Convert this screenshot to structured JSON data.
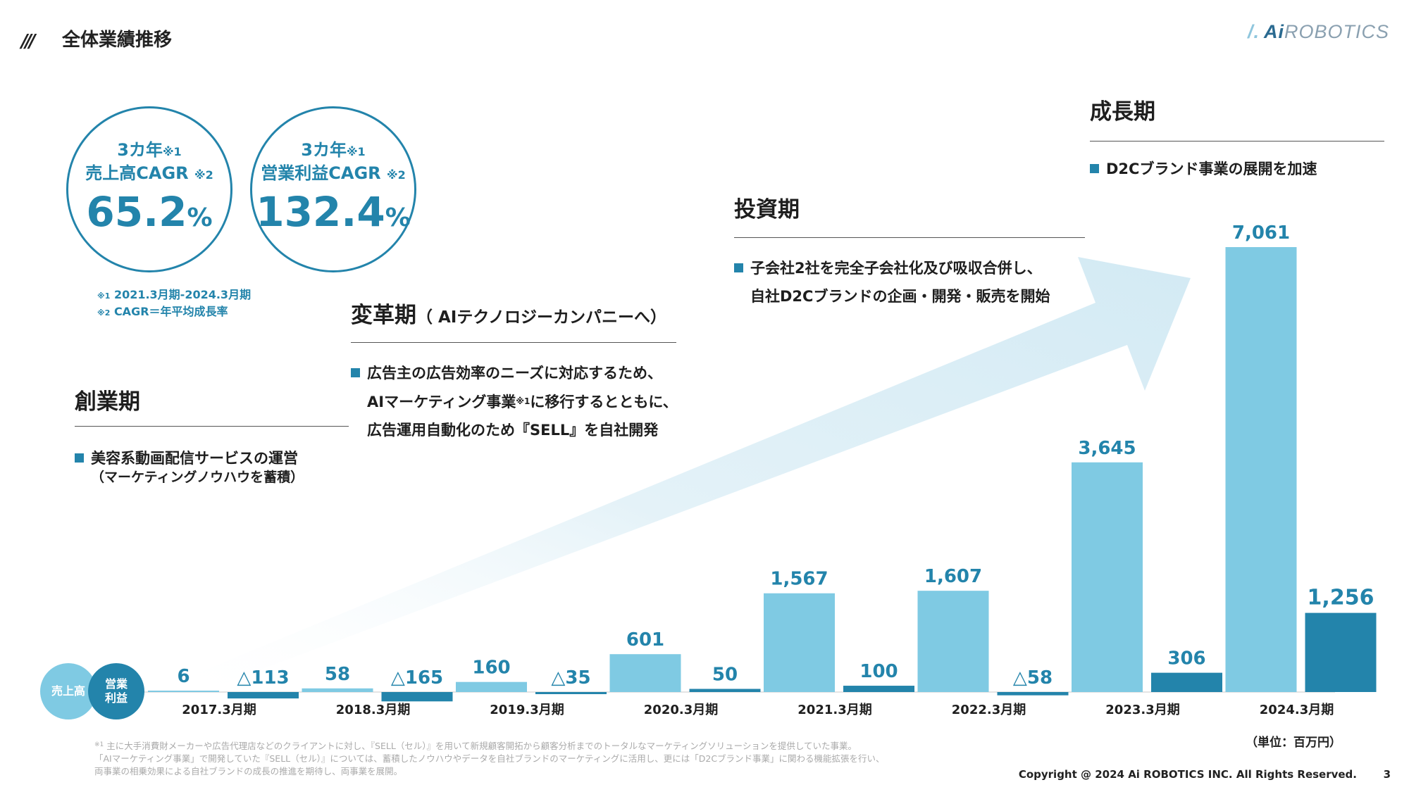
{
  "header": {
    "mark": "///",
    "title": "全体業績推移"
  },
  "logo": {
    "slash": "/.",
    "ai": "Ai",
    "rest": "ROBOTICS"
  },
  "cagr": [
    {
      "line1": "3カ年",
      "note1": "※1",
      "line2": "売上高CAGR",
      "note2": "※2",
      "value": "65.2",
      "unit": "%"
    },
    {
      "line1": "3カ年",
      "note1": "※1",
      "line2": "営業利益CAGR",
      "note2": "※2",
      "value": "132.4",
      "unit": "%"
    }
  ],
  "cagr_notes": [
    {
      "mark": "※1",
      "text": "2021.3月期-2024.3月期"
    },
    {
      "mark": "※2",
      "text": "CAGR＝年平均成長率"
    }
  ],
  "phases": [
    {
      "title": "創業期",
      "lines": [
        "美容系動画配信サービスの運営",
        "（マーケティングノウハウを蓄積）"
      ]
    },
    {
      "title": "変革期",
      "title_sub": "（ AIテクノロジーカンパニーへ）",
      "lines": [
        "広告主の広告効率のニーズに対応するため、",
        "AIマーケティング事業",
        "※1",
        "に移行するとともに、",
        "広告運用自動化のため『SELL』を自社開発"
      ]
    },
    {
      "title": "投資期",
      "lines": [
        "子会社2社を完全子会社化及び吸収合併し、",
        "自社D2Cブランドの企画・開発・販売を開始"
      ]
    },
    {
      "title": "成長期",
      "lines": [
        "D2Cブランド事業の展開を加速"
      ]
    }
  ],
  "legend": {
    "sales": "売上高",
    "profit_line1": "営業",
    "profit_line2": "利益"
  },
  "chart_data": {
    "type": "bar",
    "categories": [
      "2017.3月期",
      "2018.3月期",
      "2019.3月期",
      "2020.3月期",
      "2021.3月期",
      "2022.3月期",
      "2023.3月期",
      "2024.3月期"
    ],
    "series": [
      {
        "name": "売上高",
        "values": [
          6,
          58,
          160,
          601,
          1567,
          1607,
          3645,
          7061
        ],
        "labels": [
          "6",
          "58",
          "160",
          "601",
          "1,567",
          "1,607",
          "3,645",
          "7,061"
        ]
      },
      {
        "name": "営業利益",
        "values": [
          -113,
          -165,
          -35,
          50,
          100,
          -58,
          306,
          1256
        ],
        "labels": [
          "△113",
          "△165",
          "△35",
          "50",
          "100",
          "△58",
          "306",
          "1,256"
        ]
      }
    ],
    "unit": "（単位：百万円）",
    "colors": {
      "sales": "#7fcae3",
      "profit": "#2384ab",
      "label": "#2384ab",
      "arrow": "#d5ebf4"
    }
  },
  "footnote": [
    {
      "mark": "※1",
      "text": "主に大手消費財メーカーや広告代理店などのクライアントに対し、『SELL（セル）』を用いて新規顧客開拓から顧客分析までのトータルなマーケティングソリューションを提供していた事業。"
    },
    {
      "text": "「AIマーケティング事業」で開発していた『SELL（セル）』については、蓄積したノウハウやデータを自社ブランドのマーケティングに活用し、更には「D2Cブランド事業」に関わる機能拡張を行い、"
    },
    {
      "text": "両事業の相乗効果による自社ブランドの成長の推進を期待し、両事業を展開。"
    }
  ],
  "copyright": "Copyright @ 2024 Ai ROBOTICS INC. All Rights Reserved.",
  "page_number": "3"
}
